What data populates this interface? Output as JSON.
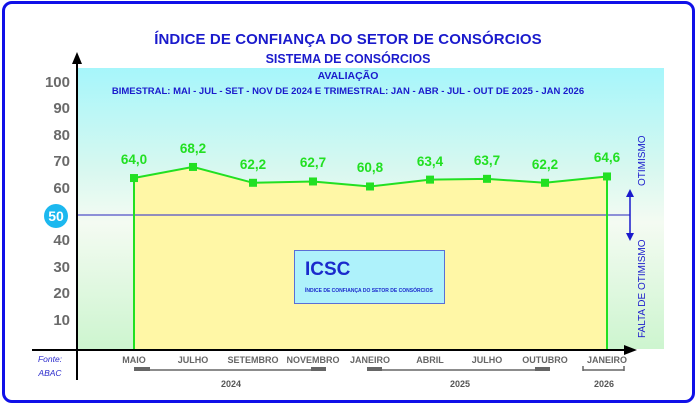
{
  "header": {
    "title": "ÍNDICE DE CONFIANÇA DO SETOR DE CONSÓRCIOS",
    "subtitle": "SISTEMA DE CONSÓRCIOS",
    "section": "AVALIAÇÃO",
    "period": "BIMESTRAL: MAI - JUL - SET - NOV DE 2024 E TRIMESTRAL: JAN - ABR - JUL - OUT DE 2025 - JAN 2026"
  },
  "legend": {
    "title": "ICSC",
    "subtitle": "ÍNDICE DE CONFIANÇA DO SETOR DE CONSÓRCIOS"
  },
  "annotations": {
    "above": "OTIMISMO",
    "below": "FALTA DE OTIMISMO",
    "threshold": "50"
  },
  "source": {
    "line1": "Fonte:",
    "line2": "ABAC"
  },
  "years": [
    "2024",
    "2025",
    "2026"
  ],
  "colors": {
    "frame": "#1010e8",
    "series": "#22e022",
    "title": "#1a1acc",
    "threshold_line": "#5050c8",
    "area_fill": "#fff7a6"
  },
  "chart_data": {
    "type": "area",
    "title": "ÍNDICE DE CONFIANÇA DO SETOR DE CONSÓRCIOS",
    "subtitle": "SISTEMA DE CONSÓRCIOS — AVALIAÇÃO",
    "categories": [
      "MAIO",
      "JULHO",
      "SETEMBRO",
      "NOVEMBRO",
      "JANEIRO",
      "ABRIL",
      "JULHO",
      "OUTUBRO",
      "JANEIRO"
    ],
    "year_groups": [
      {
        "year": "2024",
        "months": [
          "MAIO",
          "JULHO",
          "SETEMBRO",
          "NOVEMBRO"
        ]
      },
      {
        "year": "2025",
        "months": [
          "JANEIRO",
          "ABRIL",
          "JULHO",
          "OUTUBRO"
        ]
      },
      {
        "year": "2026",
        "months": [
          "JANEIRO"
        ]
      }
    ],
    "series": [
      {
        "name": "ICSC",
        "values": [
          64.0,
          68.2,
          62.2,
          62.7,
          60.8,
          63.4,
          63.7,
          62.2,
          64.6
        ]
      }
    ],
    "value_labels": [
      "64,0",
      "68,2",
      "62,2",
      "62,7",
      "60,8",
      "63,4",
      "63,7",
      "62,2",
      "64,6"
    ],
    "yticks": [
      10,
      20,
      30,
      40,
      50,
      60,
      70,
      80,
      90,
      100
    ],
    "ylim": [
      0,
      100
    ],
    "reference_line": 50,
    "xlabel": "",
    "ylabel": "",
    "grid": false,
    "legend_position": "center"
  }
}
